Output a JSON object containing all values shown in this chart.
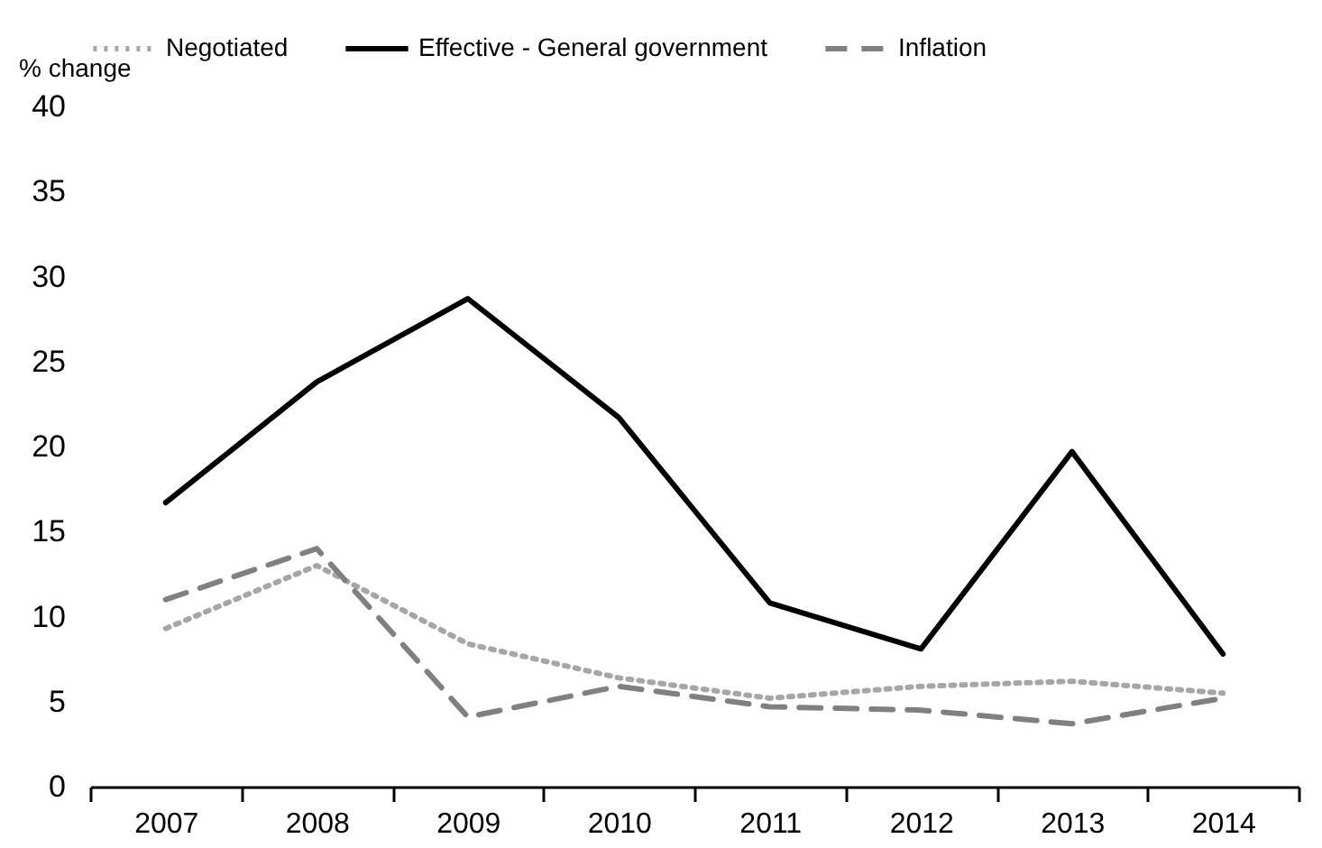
{
  "chart_data": {
    "type": "line",
    "ylabel": "% change",
    "categories": [
      "2007",
      "2008",
      "2009",
      "2010",
      "2011",
      "2012",
      "2013",
      "2014"
    ],
    "ylim": [
      0,
      40
    ],
    "yticks": [
      0,
      5,
      10,
      15,
      20,
      25,
      30,
      35,
      40
    ],
    "grid": false,
    "legend": "top",
    "series": [
      {
        "name": "Negotiated",
        "color": "#a6a6a6",
        "line_style": "dotted",
        "values": [
          9.3,
          13.0,
          8.4,
          6.4,
          5.2,
          5.9,
          6.2,
          5.5
        ]
      },
      {
        "name": "Effective - General government",
        "color": "#000000",
        "line_style": "solid",
        "values": [
          16.7,
          23.8,
          28.7,
          21.7,
          10.8,
          8.1,
          19.7,
          7.8
        ]
      },
      {
        "name": "Inflation",
        "color": "#808080",
        "line_style": "dashed",
        "values": [
          11.0,
          14.0,
          4.1,
          5.9,
          4.7,
          4.5,
          3.7,
          5.2
        ]
      }
    ]
  }
}
